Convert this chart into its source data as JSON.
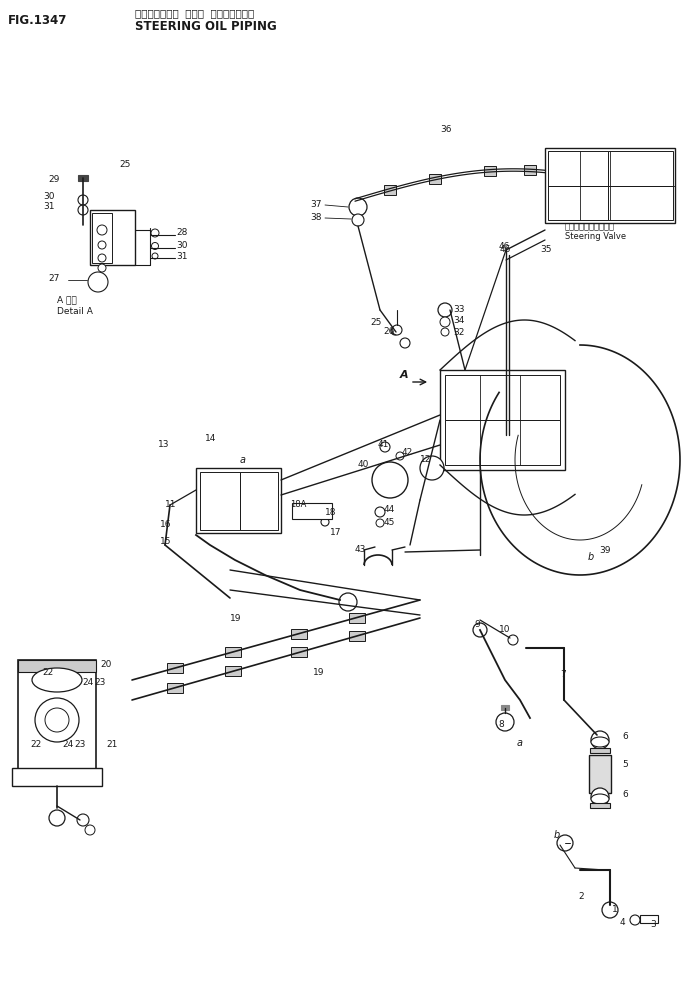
{
  "title_japanese": "ステアリング゚  オイル  バイピング゚",
  "title_english": "STEERING OIL PIPING",
  "fig_label": "FIG.1347",
  "bg_color": "#ffffff",
  "line_color": "#1a1a1a",
  "steering_valve_japanese": "ステアリングバルブ",
  "steering_valve_english": "Steering Valve",
  "detail_japanese": "A 詳細",
  "detail_english": "Detail A",
  "figsize": [
    6.85,
    9.84
  ],
  "dpi": 100
}
